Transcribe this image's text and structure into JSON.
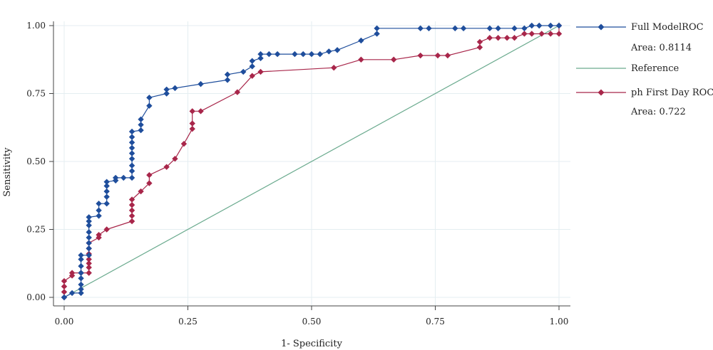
{
  "chart_data": {
    "type": "line",
    "title": "",
    "xlabel": "1- Specificity",
    "ylabel": "Sensitivity",
    "xlim": [
      0,
      1
    ],
    "ylim": [
      0,
      1
    ],
    "x_ticks": [
      "0.00",
      "0.25",
      "0.50",
      "0.75",
      "1.00"
    ],
    "y_ticks": [
      "0.00",
      "0.25",
      "0.50",
      "0.75",
      "1.00"
    ],
    "grid": true,
    "legend_position": "right",
    "series": [
      {
        "name": "Full ModelROC",
        "area_label": "Area: 0.8114",
        "color": "#1f4e9c",
        "marker": "diamond",
        "points": [
          [
            0.0,
            0.0
          ],
          [
            0.016,
            0.016
          ],
          [
            0.034,
            0.016
          ],
          [
            0.034,
            0.03
          ],
          [
            0.034,
            0.047
          ],
          [
            0.034,
            0.07
          ],
          [
            0.034,
            0.09
          ],
          [
            0.034,
            0.115
          ],
          [
            0.034,
            0.14
          ],
          [
            0.034,
            0.155
          ],
          [
            0.05,
            0.155
          ],
          [
            0.05,
            0.18
          ],
          [
            0.05,
            0.2
          ],
          [
            0.05,
            0.22
          ],
          [
            0.05,
            0.24
          ],
          [
            0.05,
            0.265
          ],
          [
            0.05,
            0.28
          ],
          [
            0.05,
            0.295
          ],
          [
            0.07,
            0.3
          ],
          [
            0.07,
            0.32
          ],
          [
            0.07,
            0.345
          ],
          [
            0.086,
            0.345
          ],
          [
            0.086,
            0.37
          ],
          [
            0.086,
            0.39
          ],
          [
            0.086,
            0.41
          ],
          [
            0.086,
            0.425
          ],
          [
            0.104,
            0.43
          ],
          [
            0.104,
            0.44
          ],
          [
            0.12,
            0.44
          ],
          [
            0.137,
            0.44
          ],
          [
            0.137,
            0.465
          ],
          [
            0.137,
            0.485
          ],
          [
            0.137,
            0.51
          ],
          [
            0.137,
            0.53
          ],
          [
            0.137,
            0.55
          ],
          [
            0.137,
            0.57
          ],
          [
            0.137,
            0.59
          ],
          [
            0.137,
            0.61
          ],
          [
            0.155,
            0.615
          ],
          [
            0.155,
            0.635
          ],
          [
            0.155,
            0.655
          ],
          [
            0.172,
            0.705
          ],
          [
            0.172,
            0.735
          ],
          [
            0.207,
            0.75
          ],
          [
            0.207,
            0.765
          ],
          [
            0.224,
            0.77
          ],
          [
            0.276,
            0.785
          ],
          [
            0.33,
            0.8
          ],
          [
            0.33,
            0.82
          ],
          [
            0.362,
            0.83
          ],
          [
            0.38,
            0.85
          ],
          [
            0.38,
            0.87
          ],
          [
            0.397,
            0.88
          ],
          [
            0.397,
            0.895
          ],
          [
            0.414,
            0.895
          ],
          [
            0.431,
            0.895
          ],
          [
            0.466,
            0.895
          ],
          [
            0.483,
            0.895
          ],
          [
            0.5,
            0.895
          ],
          [
            0.517,
            0.895
          ],
          [
            0.535,
            0.905
          ],
          [
            0.552,
            0.91
          ],
          [
            0.6,
            0.945
          ],
          [
            0.632,
            0.97
          ],
          [
            0.632,
            0.99
          ],
          [
            0.72,
            0.99
          ],
          [
            0.737,
            0.99
          ],
          [
            0.79,
            0.99
          ],
          [
            0.807,
            0.99
          ],
          [
            0.86,
            0.99
          ],
          [
            0.877,
            0.99
          ],
          [
            0.91,
            0.99
          ],
          [
            0.93,
            0.99
          ],
          [
            0.945,
            1.0
          ],
          [
            0.96,
            1.0
          ],
          [
            0.983,
            1.0
          ],
          [
            1.0,
            1.0
          ]
        ]
      },
      {
        "name": "Reference",
        "color": "#6aaa8e",
        "marker": "none",
        "points": [
          [
            0.0,
            0.0
          ],
          [
            1.0,
            1.0
          ]
        ]
      },
      {
        "name": "ph First Day ROC",
        "area_label": "Area: 0.722",
        "color": "#a8264a",
        "marker": "diamond",
        "points": [
          [
            0.0,
            0.0
          ],
          [
            0.0,
            0.02
          ],
          [
            0.0,
            0.04
          ],
          [
            0.0,
            0.06
          ],
          [
            0.016,
            0.08
          ],
          [
            0.016,
            0.09
          ],
          [
            0.034,
            0.09
          ],
          [
            0.05,
            0.09
          ],
          [
            0.05,
            0.11
          ],
          [
            0.05,
            0.125
          ],
          [
            0.05,
            0.14
          ],
          [
            0.05,
            0.16
          ],
          [
            0.05,
            0.18
          ],
          [
            0.05,
            0.2
          ],
          [
            0.07,
            0.22
          ],
          [
            0.07,
            0.23
          ],
          [
            0.086,
            0.25
          ],
          [
            0.137,
            0.28
          ],
          [
            0.137,
            0.3
          ],
          [
            0.137,
            0.32
          ],
          [
            0.137,
            0.34
          ],
          [
            0.137,
            0.36
          ],
          [
            0.155,
            0.39
          ],
          [
            0.172,
            0.42
          ],
          [
            0.172,
            0.45
          ],
          [
            0.207,
            0.48
          ],
          [
            0.224,
            0.51
          ],
          [
            0.242,
            0.565
          ],
          [
            0.259,
            0.62
          ],
          [
            0.259,
            0.64
          ],
          [
            0.259,
            0.685
          ],
          [
            0.276,
            0.685
          ],
          [
            0.35,
            0.755
          ],
          [
            0.38,
            0.815
          ],
          [
            0.397,
            0.83
          ],
          [
            0.545,
            0.845
          ],
          [
            0.6,
            0.875
          ],
          [
            0.666,
            0.875
          ],
          [
            0.72,
            0.89
          ],
          [
            0.755,
            0.89
          ],
          [
            0.775,
            0.89
          ],
          [
            0.84,
            0.92
          ],
          [
            0.84,
            0.94
          ],
          [
            0.86,
            0.955
          ],
          [
            0.877,
            0.955
          ],
          [
            0.895,
            0.955
          ],
          [
            0.91,
            0.955
          ],
          [
            0.93,
            0.97
          ],
          [
            0.945,
            0.97
          ],
          [
            0.965,
            0.97
          ],
          [
            0.983,
            0.97
          ],
          [
            1.0,
            0.97
          ],
          [
            1.0,
            1.0
          ]
        ]
      }
    ]
  }
}
